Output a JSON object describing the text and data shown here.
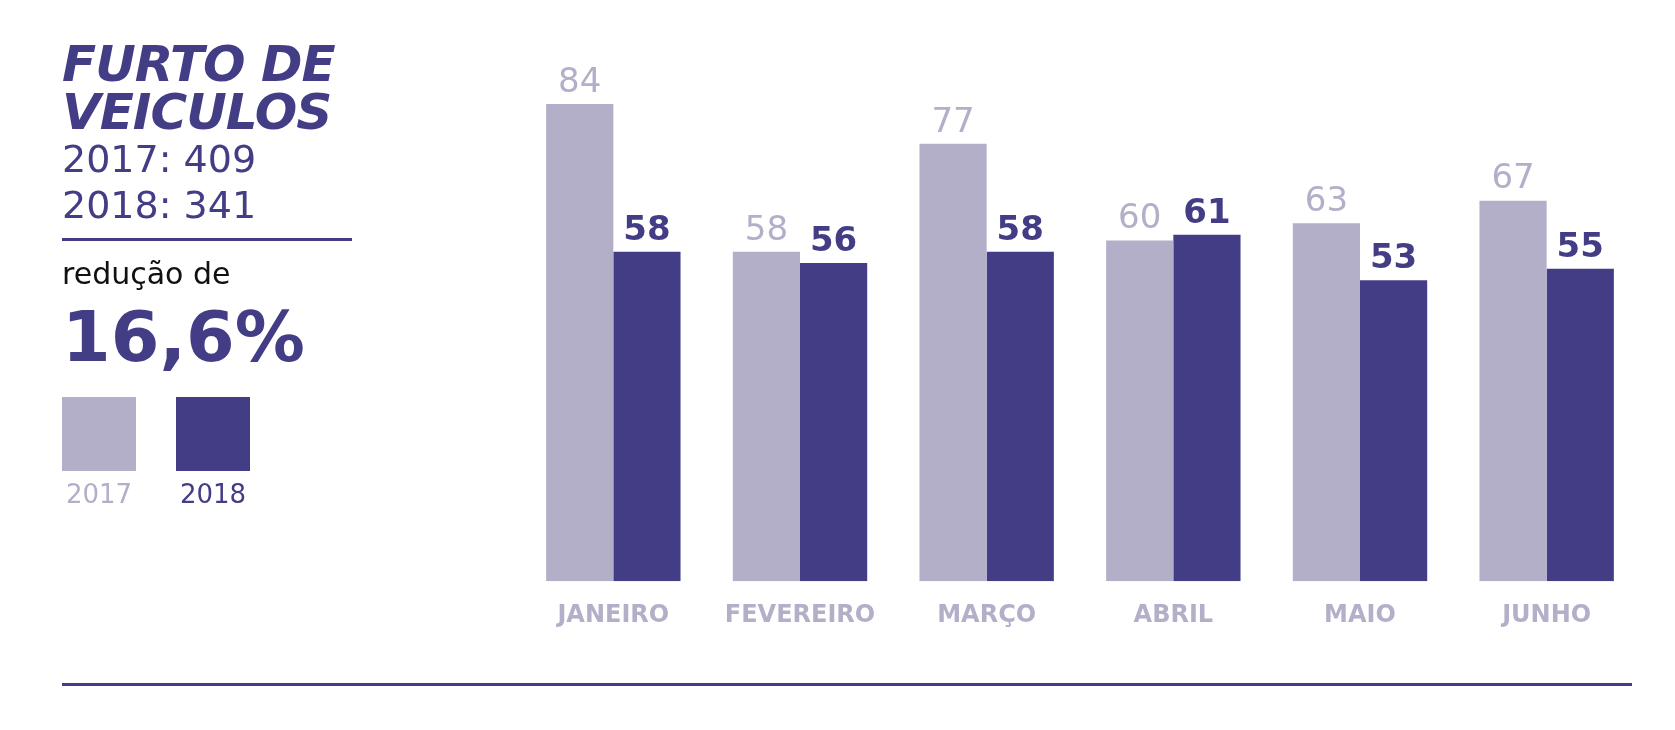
{
  "chart_data": {
    "type": "bar",
    "title": "FURTO DE VEICULOS",
    "annotations": [
      "2017: 409",
      "2018: 341",
      "redução de",
      "16,6%"
    ],
    "categories": [
      "JANEIRO",
      "FEVEREIRO",
      "MARÇO",
      "ABRIL",
      "MAIO",
      "JUNHO"
    ],
    "series": [
      {
        "name": "2017",
        "color": "#b3afc9",
        "values": [
          84,
          58,
          77,
          60,
          63,
          67
        ]
      },
      {
        "name": "2018",
        "color": "#433d86",
        "values": [
          58,
          56,
          58,
          61,
          53,
          55
        ]
      }
    ],
    "data_labels": true,
    "legend": "left",
    "grid": false
  }
}
